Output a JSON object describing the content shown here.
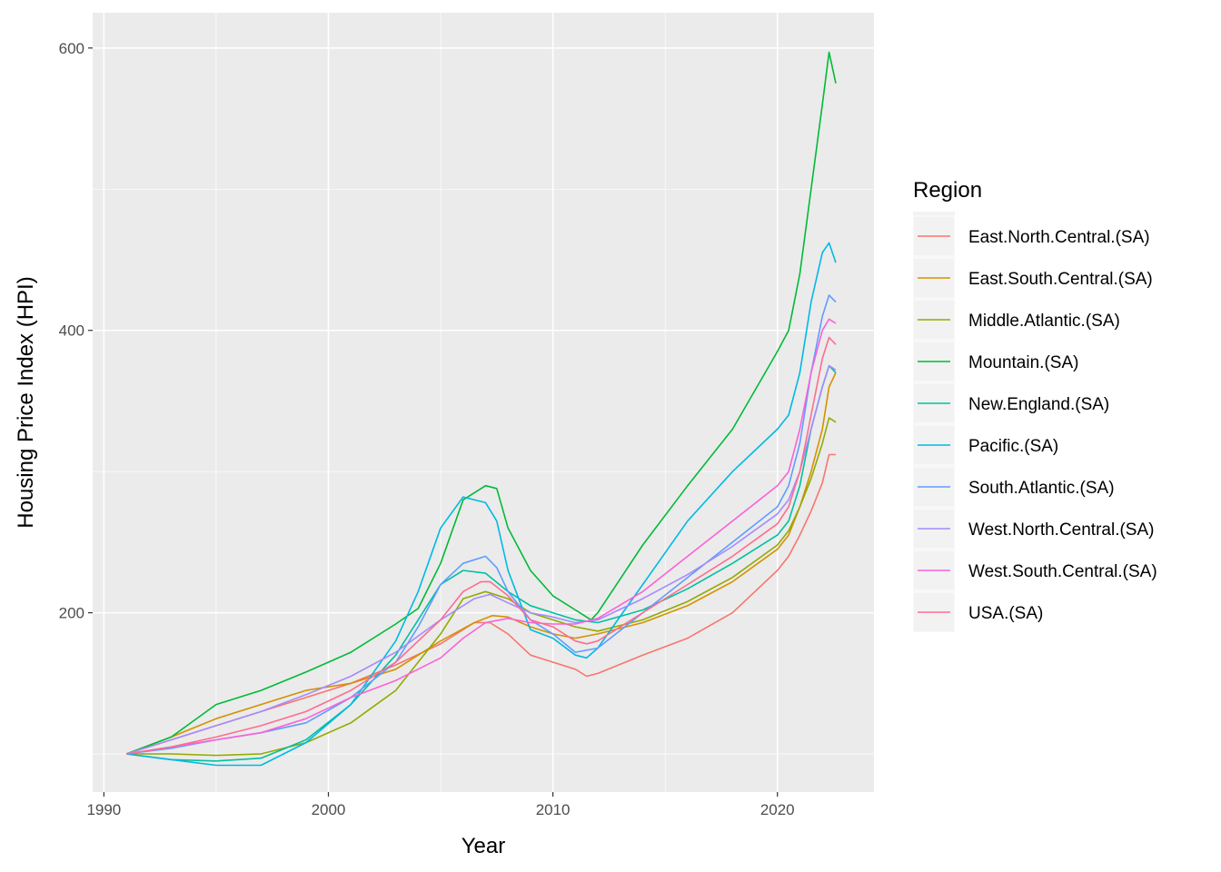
{
  "chart_data": {
    "type": "line",
    "xlabel": "Year",
    "ylabel": "Housing Price Index (HPI)",
    "xlim": [
      1989.5,
      2024.3
    ],
    "ylim": [
      73,
      625
    ],
    "x_ticks": [
      1990,
      2000,
      2010,
      2020
    ],
    "x_tick_labels": [
      "1990",
      "2000",
      "2010",
      "2020"
    ],
    "y_ticks": [
      200,
      400,
      600
    ],
    "y_tick_labels": [
      "200",
      "400",
      "600"
    ],
    "x_minor_ticks": [
      1995,
      2005,
      2015
    ],
    "y_minor_ticks": [
      100,
      300,
      500
    ],
    "grid": true,
    "legend_title": "Region",
    "legend_position": "right",
    "series": [
      {
        "name": "East.North.Central.(SA)",
        "color": "#F8766D",
        "x": [
          1991,
          1993,
          1995,
          1997,
          1999,
          2001,
          2003,
          2005,
          2006.5,
          2007.2,
          2008,
          2009,
          2010,
          2011,
          2011.5,
          2012,
          2014,
          2016,
          2018,
          2020,
          2020.5,
          2021,
          2021.5,
          2022,
          2022.3,
          2022.6
        ],
        "y": [
          100,
          110,
          120,
          130,
          140,
          150,
          163,
          178,
          193,
          193,
          185,
          170,
          165,
          160,
          155,
          157,
          170,
          182,
          200,
          230,
          240,
          255,
          272,
          292,
          312,
          312
        ]
      },
      {
        "name": "East.South.Central.(SA)",
        "color": "#D39200",
        "x": [
          1991,
          1993,
          1995,
          1997,
          1999,
          2001,
          2003,
          2005,
          2006.5,
          2007.3,
          2008,
          2009,
          2010,
          2011,
          2012,
          2014,
          2016,
          2018,
          2020,
          2020.5,
          2021,
          2021.5,
          2022,
          2022.3,
          2022.6
        ],
        "y": [
          100,
          112,
          125,
          135,
          145,
          150,
          160,
          180,
          193,
          198,
          197,
          190,
          185,
          182,
          185,
          193,
          205,
          222,
          245,
          255,
          275,
          300,
          330,
          360,
          370
        ]
      },
      {
        "name": "Middle.Atlantic.(SA)",
        "color": "#93AA00",
        "x": [
          1991,
          1993,
          1995,
          1997,
          1999,
          2001,
          2003,
          2005,
          2006,
          2007,
          2008,
          2009,
          2010,
          2011,
          2012,
          2014,
          2016,
          2018,
          2020,
          2020.5,
          2021,
          2021.5,
          2022,
          2022.3,
          2022.6
        ],
        "y": [
          100,
          100,
          99,
          100,
          108,
          122,
          145,
          185,
          210,
          215,
          210,
          200,
          195,
          190,
          187,
          195,
          208,
          225,
          248,
          258,
          275,
          295,
          320,
          338,
          335
        ]
      },
      {
        "name": "Mountain.(SA)",
        "color": "#00BA38",
        "x": [
          1991,
          1993,
          1995,
          1997,
          1999,
          2001,
          2003,
          2004,
          2005,
          2006,
          2007,
          2007.5,
          2008,
          2009,
          2010,
          2011,
          2011.7,
          2012,
          2014,
          2016,
          2018,
          2020,
          2020.5,
          2021,
          2021.5,
          2022,
          2022.3,
          2022.6
        ],
        "y": [
          100,
          112,
          135,
          145,
          158,
          172,
          192,
          203,
          235,
          280,
          290,
          288,
          260,
          230,
          212,
          202,
          195,
          200,
          248,
          290,
          330,
          385,
          400,
          440,
          500,
          560,
          597,
          575
        ]
      },
      {
        "name": "New.England.(SA)",
        "color": "#00C19F",
        "x": [
          1991,
          1993,
          1995,
          1997,
          1999,
          2001,
          2003,
          2004,
          2005,
          2006,
          2007,
          2008,
          2009,
          2010,
          2011,
          2012,
          2014,
          2016,
          2018,
          2020,
          2020.5,
          2021,
          2021.5,
          2022,
          2022.3,
          2022.6
        ],
        "y": [
          100,
          96,
          95,
          97,
          110,
          135,
          170,
          195,
          220,
          230,
          228,
          215,
          205,
          200,
          195,
          193,
          202,
          217,
          235,
          255,
          265,
          290,
          330,
          360,
          375,
          370
        ]
      },
      {
        "name": "Pacific.(SA)",
        "color": "#00B9E3",
        "x": [
          1991,
          1993,
          1995,
          1997,
          1999,
          2001,
          2003,
          2004,
          2005,
          2006,
          2007,
          2007.5,
          2008,
          2009,
          2010,
          2011,
          2011.5,
          2012,
          2014,
          2016,
          2018,
          2020,
          2020.5,
          2021,
          2021.5,
          2022,
          2022.3,
          2022.6
        ],
        "y": [
          100,
          96,
          92,
          92,
          108,
          135,
          180,
          215,
          260,
          282,
          278,
          265,
          230,
          188,
          182,
          170,
          168,
          175,
          220,
          265,
          300,
          330,
          340,
          370,
          420,
          455,
          462,
          448
        ]
      },
      {
        "name": "South.Atlantic.(SA)",
        "color": "#619CFF",
        "x": [
          1991,
          1993,
          1995,
          1997,
          1999,
          2001,
          2003,
          2004,
          2005,
          2006,
          2007,
          2007.5,
          2008,
          2009,
          2010,
          2011,
          2012,
          2014,
          2016,
          2018,
          2020,
          2020.5,
          2021,
          2021.5,
          2022,
          2022.3,
          2022.6
        ],
        "y": [
          100,
          104,
          110,
          115,
          122,
          140,
          165,
          190,
          220,
          235,
          240,
          232,
          215,
          195,
          185,
          172,
          175,
          200,
          225,
          250,
          275,
          290,
          320,
          370,
          410,
          425,
          420
        ]
      },
      {
        "name": "West.North.Central.(SA)",
        "color": "#A58AFF",
        "x": [
          1991,
          1993,
          1995,
          1997,
          1999,
          2001,
          2003,
          2005,
          2006.5,
          2007.2,
          2008,
          2009,
          2010,
          2011,
          2012,
          2014,
          2016,
          2018,
          2020,
          2020.5,
          2021,
          2021.5,
          2022,
          2022.3,
          2022.6
        ],
        "y": [
          100,
          110,
          120,
          130,
          142,
          155,
          172,
          195,
          210,
          213,
          207,
          200,
          197,
          193,
          195,
          210,
          227,
          247,
          270,
          280,
          300,
          330,
          360,
          375,
          372
        ]
      },
      {
        "name": "West.South.Central.(SA)",
        "color": "#FB61D7",
        "x": [
          1991,
          1993,
          1995,
          1997,
          1999,
          2001,
          2003,
          2005,
          2006,
          2007,
          2008,
          2009,
          2010,
          2011,
          2012,
          2014,
          2016,
          2018,
          2020,
          2020.5,
          2021,
          2021.5,
          2022,
          2022.3,
          2022.6
        ],
        "y": [
          100,
          105,
          110,
          115,
          125,
          140,
          152,
          168,
          182,
          193,
          196,
          193,
          192,
          192,
          196,
          215,
          240,
          265,
          290,
          300,
          330,
          370,
          400,
          408,
          405
        ]
      },
      {
        "name": "USA.(SA)",
        "color": "#FF6C91",
        "x": [
          1991,
          1993,
          1995,
          1997,
          1999,
          2001,
          2003,
          2005,
          2006,
          2006.8,
          2007.2,
          2008,
          2009,
          2010,
          2011,
          2011.5,
          2012,
          2014,
          2016,
          2018,
          2020,
          2020.5,
          2021,
          2021.5,
          2022,
          2022.3,
          2022.6
        ],
        "y": [
          100,
          105,
          112,
          120,
          130,
          145,
          165,
          195,
          215,
          222,
          222,
          212,
          195,
          190,
          180,
          178,
          180,
          200,
          220,
          240,
          263,
          275,
          300,
          340,
          380,
          395,
          390
        ]
      }
    ]
  }
}
